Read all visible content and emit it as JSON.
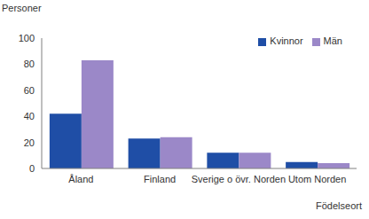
{
  "chart_data": {
    "type": "bar",
    "y_label": "Personer",
    "x_label": "Födelseort",
    "categories": [
      "Åland",
      "Finland",
      "Sverige o övr. Norden",
      "Utom Norden"
    ],
    "series": [
      {
        "name": "Kvinnor",
        "color": "#1f4ea6",
        "values": [
          42,
          23,
          12,
          5
        ]
      },
      {
        "name": "Män",
        "color": "#9b88c8",
        "values": [
          83,
          24,
          12,
          4
        ]
      }
    ],
    "ylim": [
      0,
      100
    ],
    "yticks": [
      0,
      20,
      40,
      60,
      80,
      100
    ],
    "grid": false,
    "legend": "top-right"
  }
}
